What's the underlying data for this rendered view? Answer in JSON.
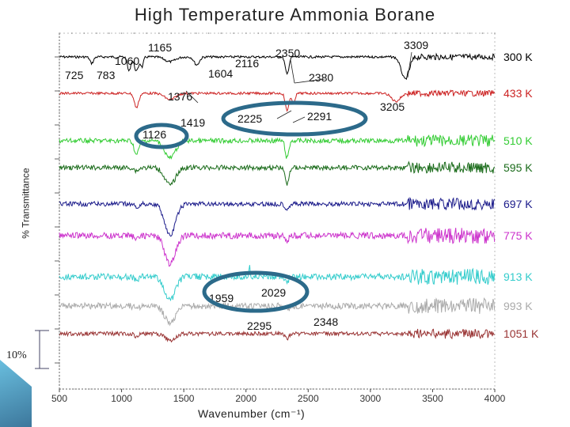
{
  "chart_data": {
    "type": "line",
    "title": "High Temperature Ammonia Borane",
    "xlabel": "Wavenumber (cm⁻¹)",
    "ylabel": "% Transmittance",
    "xlim": [
      500,
      4000
    ],
    "x_ticks": [
      500,
      1000,
      1500,
      2000,
      2500,
      3000,
      3500,
      4000
    ],
    "scale_bar": "10%",
    "series": [
      {
        "name": "300 K",
        "color": "#000000",
        "offset": 0
      },
      {
        "name": "433 K",
        "color": "#cc2222",
        "offset": 1
      },
      {
        "name": "510 K",
        "color": "#33cc33",
        "offset": 2
      },
      {
        "name": "595 K",
        "color": "#1a6b1a",
        "offset": 3
      },
      {
        "name": "697 K",
        "color": "#1a1a8a",
        "offset": 4
      },
      {
        "name": "775 K",
        "color": "#cc33cc",
        "offset": 5
      },
      {
        "name": "913 K",
        "color": "#33cccc",
        "offset": 6
      },
      {
        "name": "993 K",
        "color": "#aaaaaa",
        "offset": 7
      },
      {
        "name": "1051 K",
        "color": "#993333",
        "offset": 8
      }
    ],
    "peak_labels": [
      {
        "text": "725"
      },
      {
        "text": "783"
      },
      {
        "text": "1060"
      },
      {
        "text": "1165"
      },
      {
        "text": "1376"
      },
      {
        "text": "1604"
      },
      {
        "text": "2116"
      },
      {
        "text": "2350"
      },
      {
        "text": "2380"
      },
      {
        "text": "3309"
      },
      {
        "text": "3205"
      },
      {
        "text": "1419"
      },
      {
        "text": "2225"
      },
      {
        "text": "2291"
      },
      {
        "text": "1126"
      },
      {
        "text": "1959"
      },
      {
        "text": "2029"
      },
      {
        "text": "2295"
      },
      {
        "text": "2348"
      }
    ]
  }
}
